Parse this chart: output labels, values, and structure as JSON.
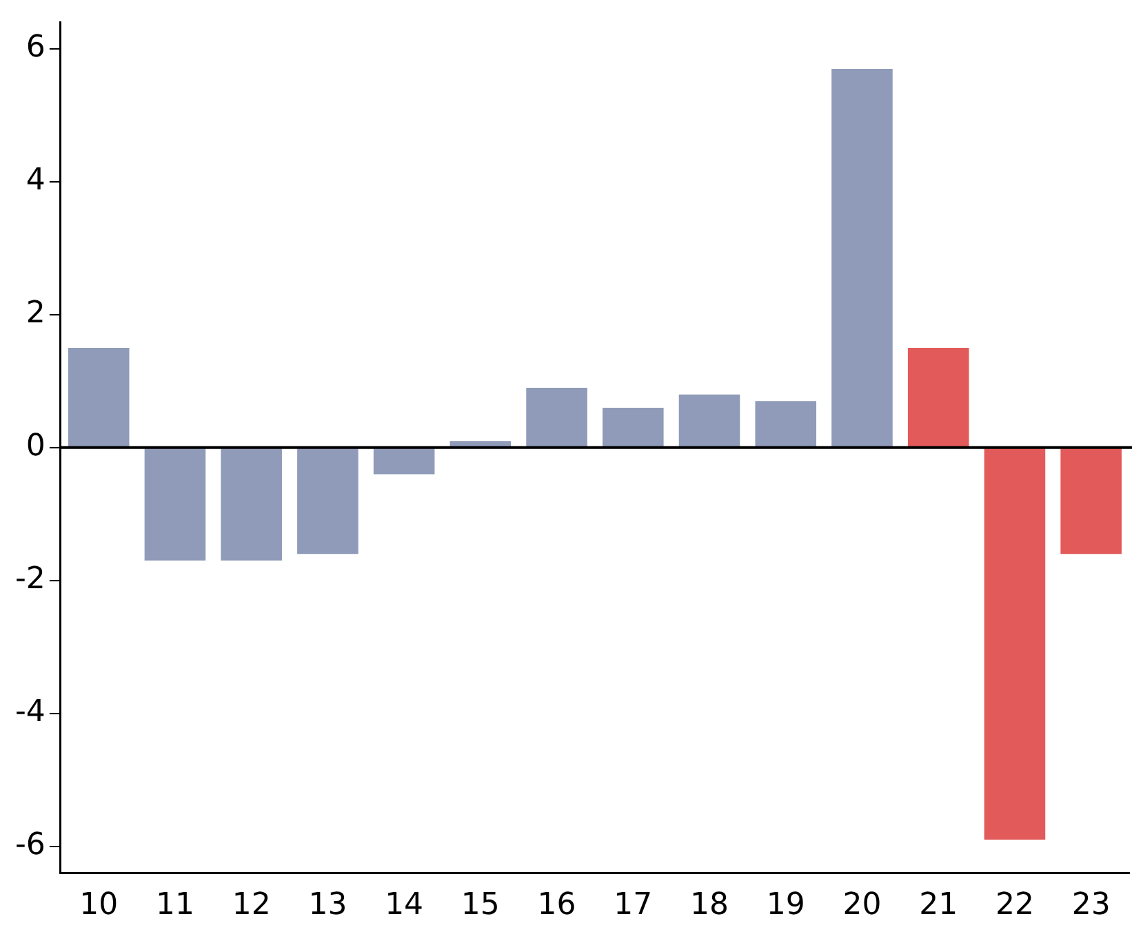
{
  "chart_data": {
    "type": "bar",
    "categories": [
      "10",
      "11",
      "12",
      "13",
      "14",
      "15",
      "16",
      "17",
      "18",
      "19",
      "20",
      "21",
      "22",
      "23"
    ],
    "values": [
      1.5,
      -1.7,
      -1.7,
      -1.6,
      -0.4,
      0.1,
      0.9,
      0.6,
      0.8,
      0.7,
      5.7,
      1.5,
      -5.9,
      -1.6
    ],
    "colors": [
      "#8f9bb8",
      "#8f9bb8",
      "#8f9bb8",
      "#8f9bb8",
      "#8f9bb8",
      "#8f9bb8",
      "#8f9bb8",
      "#8f9bb8",
      "#8f9bb8",
      "#8f9bb8",
      "#8f9bb8",
      "#e35a5a",
      "#e35a5a",
      "#e35a5a"
    ],
    "ylim": [
      -6.4,
      6.4
    ],
    "yticks": [
      -6,
      -4,
      -2,
      0,
      2,
      4,
      6
    ],
    "ref_lines": [
      {
        "axis": "y",
        "value": 0,
        "color": "#000000"
      }
    ],
    "grid": false,
    "legend": false
  }
}
